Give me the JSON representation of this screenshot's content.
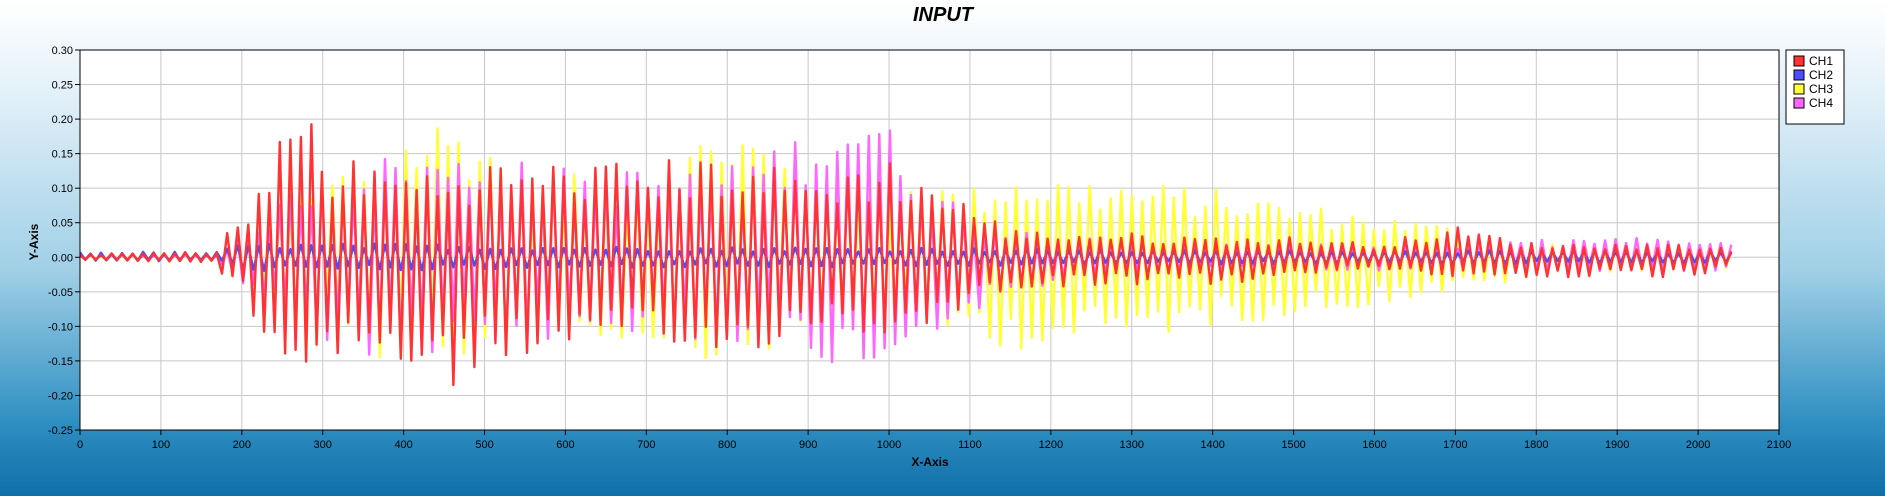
{
  "chart_data": {
    "type": "line",
    "title": "INPUT",
    "xlabel": "X-Axis",
    "ylabel": "Y-Axis",
    "xlim": [
      0,
      2100
    ],
    "ylim": [
      -0.25,
      0.3
    ],
    "xticks": [
      0,
      100,
      200,
      300,
      400,
      500,
      600,
      700,
      800,
      900,
      1000,
      1100,
      1200,
      1300,
      1400,
      1500,
      1600,
      1700,
      1800,
      1900,
      2000,
      2100
    ],
    "yticks": [
      -0.25,
      -0.2,
      -0.15,
      -0.1,
      -0.05,
      0.0,
      0.05,
      0.1,
      0.15,
      0.2,
      0.25,
      0.3
    ],
    "xtick_labels": [
      "0",
      "100",
      "200",
      "300",
      "400",
      "500",
      "600",
      "700",
      "800",
      "900",
      "1000",
      "1100",
      "1200",
      "1300",
      "1400",
      "1500",
      "1600",
      "1700",
      "1800",
      "1900",
      "2000",
      "2100"
    ],
    "ytick_labels": [
      "-0.25",
      "-0.20",
      "-0.15",
      "-0.10",
      "-0.05",
      "0.00",
      "0.05",
      "0.10",
      "0.15",
      "0.20",
      "0.25",
      "0.30"
    ],
    "grid": true,
    "legend_position": "right",
    "x_extent": [
      0,
      2047
    ],
    "series": [
      {
        "name": "CH1",
        "color": "#ff3333",
        "draw_order": 4,
        "envelope": [
          [
            0,
            0.005,
            -0.005
          ],
          [
            170,
            0.008,
            -0.008
          ],
          [
            180,
            0.045,
            -0.04
          ],
          [
            210,
            0.06,
            -0.07
          ],
          [
            230,
            0.13,
            -0.15
          ],
          [
            265,
            0.23,
            -0.17
          ],
          [
            280,
            0.245,
            -0.18
          ],
          [
            300,
            0.15,
            -0.14
          ],
          [
            400,
            0.13,
            -0.16
          ],
          [
            460,
            0.13,
            -0.195
          ],
          [
            500,
            0.14,
            -0.15
          ],
          [
            600,
            0.14,
            -0.14
          ],
          [
            700,
            0.14,
            -0.13
          ],
          [
            800,
            0.15,
            -0.155
          ],
          [
            900,
            0.12,
            -0.1
          ],
          [
            1000,
            0.145,
            -0.12
          ],
          [
            1100,
            0.08,
            -0.07
          ],
          [
            1150,
            0.04,
            -0.045
          ],
          [
            1300,
            0.035,
            -0.04
          ],
          [
            1400,
            0.03,
            -0.04
          ],
          [
            1500,
            0.03,
            -0.03
          ],
          [
            1600,
            0.02,
            -0.015
          ],
          [
            1700,
            0.045,
            -0.03
          ],
          [
            1800,
            0.02,
            -0.03
          ],
          [
            1900,
            0.02,
            -0.03
          ],
          [
            2000,
            0.02,
            -0.03
          ],
          [
            2047,
            0.01,
            -0.015
          ]
        ]
      },
      {
        "name": "CH2",
        "color": "#4d4dff",
        "draw_order": 3,
        "envelope": [
          [
            0,
            0.008,
            -0.006
          ],
          [
            170,
            0.008,
            -0.006
          ],
          [
            200,
            0.02,
            -0.02
          ],
          [
            400,
            0.02,
            -0.02
          ],
          [
            700,
            0.015,
            -0.015
          ],
          [
            1000,
            0.015,
            -0.015
          ],
          [
            1300,
            0.01,
            -0.01
          ],
          [
            1700,
            0.01,
            -0.01
          ],
          [
            2047,
            0.008,
            -0.008
          ]
        ]
      },
      {
        "name": "CH3",
        "color": "#ffff33",
        "draw_order": 1,
        "envelope": [
          [
            0,
            0.002,
            -0.002
          ],
          [
            170,
            0.003,
            -0.003
          ],
          [
            200,
            0.03,
            -0.04
          ],
          [
            300,
            0.12,
            -0.12
          ],
          [
            400,
            0.18,
            -0.16
          ],
          [
            440,
            0.205,
            -0.17
          ],
          [
            480,
            0.2,
            -0.16
          ],
          [
            550,
            0.12,
            -0.12
          ],
          [
            700,
            0.12,
            -0.12
          ],
          [
            800,
            0.205,
            -0.155
          ],
          [
            900,
            0.14,
            -0.12
          ],
          [
            1000,
            0.12,
            -0.12
          ],
          [
            1100,
            0.1,
            -0.11
          ],
          [
            1150,
            0.125,
            -0.135
          ],
          [
            1300,
            0.11,
            -0.12
          ],
          [
            1400,
            0.1,
            -0.1
          ],
          [
            1550,
            0.07,
            -0.08
          ],
          [
            1700,
            0.045,
            -0.05
          ],
          [
            1800,
            0.02,
            -0.03
          ],
          [
            1900,
            0.02,
            -0.02
          ],
          [
            2047,
            0.02,
            -0.02
          ]
        ]
      },
      {
        "name": "CH4",
        "color": "#ff66ff",
        "draw_order": 2,
        "envelope": [
          [
            0,
            0.004,
            -0.004
          ],
          [
            170,
            0.004,
            -0.004
          ],
          [
            200,
            0.03,
            -0.04
          ],
          [
            300,
            0.14,
            -0.14
          ],
          [
            400,
            0.15,
            -0.16
          ],
          [
            500,
            0.15,
            -0.13
          ],
          [
            600,
            0.13,
            -0.12
          ],
          [
            800,
            0.13,
            -0.12
          ],
          [
            950,
            0.22,
            -0.16
          ],
          [
            975,
            0.23,
            -0.17
          ],
          [
            1020,
            0.16,
            -0.13
          ],
          [
            1100,
            0.06,
            -0.08
          ],
          [
            1200,
            0.03,
            -0.04
          ],
          [
            1400,
            0.02,
            -0.02
          ],
          [
            1700,
            0.02,
            -0.02
          ],
          [
            1900,
            0.03,
            -0.02
          ],
          [
            2047,
            0.02,
            -0.02
          ]
        ]
      }
    ]
  }
}
